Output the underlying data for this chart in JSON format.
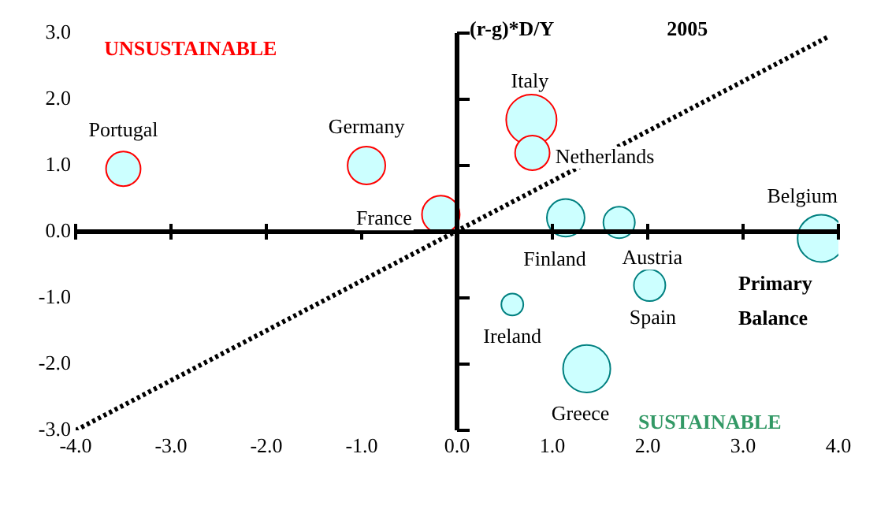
{
  "chart_data": {
    "type": "bubble",
    "title": "2005",
    "ylabel": "(r-g)*D/Y",
    "xlabel": "Primary Balance",
    "xlim": [
      -4,
      4
    ],
    "ylim": [
      -3,
      3
    ],
    "xticks": [
      {
        "value": -4,
        "label": "-4.0"
      },
      {
        "value": -3,
        "label": "-3.0"
      },
      {
        "value": -2,
        "label": "-2.0"
      },
      {
        "value": -1,
        "label": "-1.0"
      },
      {
        "value": 0,
        "label": "0.0"
      },
      {
        "value": 1,
        "label": "1.0"
      },
      {
        "value": 2,
        "label": "2.0"
      },
      {
        "value": 3,
        "label": "3.0"
      },
      {
        "value": 4,
        "label": "4.0"
      }
    ],
    "yticks": [
      {
        "value": -3,
        "label": "-3.0"
      },
      {
        "value": -2,
        "label": "-2.0"
      },
      {
        "value": -1,
        "label": "-1.0"
      },
      {
        "value": 0,
        "label": "0.0"
      },
      {
        "value": 1,
        "label": "1.0"
      },
      {
        "value": 2,
        "label": "2.0"
      },
      {
        "value": 3,
        "label": "3.0"
      }
    ],
    "legend": false,
    "series": [
      {
        "color": "#ff0000",
        "x": [
          -3.5,
          -0.95,
          -0.17,
          0.78,
          0.79
        ],
        "values": [
          0.95,
          1.0,
          0.26,
          1.69,
          1.19
        ],
        "sizes": [
          0.47,
          0.56,
          0.56,
          1,
          0.47
        ]
      },
      {
        "color": "#008080",
        "x": [
          1.14,
          1.7,
          3.82,
          2.02,
          0.58,
          1.36
        ],
        "values": [
          0.21,
          0.14,
          -0.1,
          -0.81,
          -1.1,
          -2.07
        ],
        "sizes": [
          0.56,
          0.39,
          0.88,
          0.39,
          0.19,
          0.88
        ]
      },
      {
        "type": "line",
        "color": "#000000",
        "line_style": "dotted",
        "marker": "none",
        "x": [
          -4,
          3.9
        ],
        "values": [
          -3,
          2.95
        ]
      }
    ],
    "annotations": [
      "UNSUSTAINABLE",
      "SUSTAINABLE",
      {
        "text": "Portugal",
        "x": -3.5,
        "y": 0.95
      },
      {
        "text": "Germany",
        "x": -0.95,
        "y": 1.0
      },
      {
        "text": "France",
        "x": -0.17,
        "y": 0.26
      },
      {
        "text": "Italy",
        "x": 0.78,
        "y": 1.69
      },
      {
        "text": "Netherlands",
        "x": 0.79,
        "y": 1.19
      },
      {
        "text": "Finland",
        "x": 1.14,
        "y": 0.21
      },
      {
        "text": "Austria",
        "x": 1.7,
        "y": 0.14
      },
      {
        "text": "Belgium",
        "x": 3.82,
        "y": -0.1
      },
      {
        "text": "Spain",
        "x": 2.02,
        "y": -0.81
      },
      {
        "text": "Ireland",
        "x": 0.58,
        "y": -1.1
      },
      {
        "text": "Greece",
        "x": 1.36,
        "y": -2.07
      }
    ]
  }
}
